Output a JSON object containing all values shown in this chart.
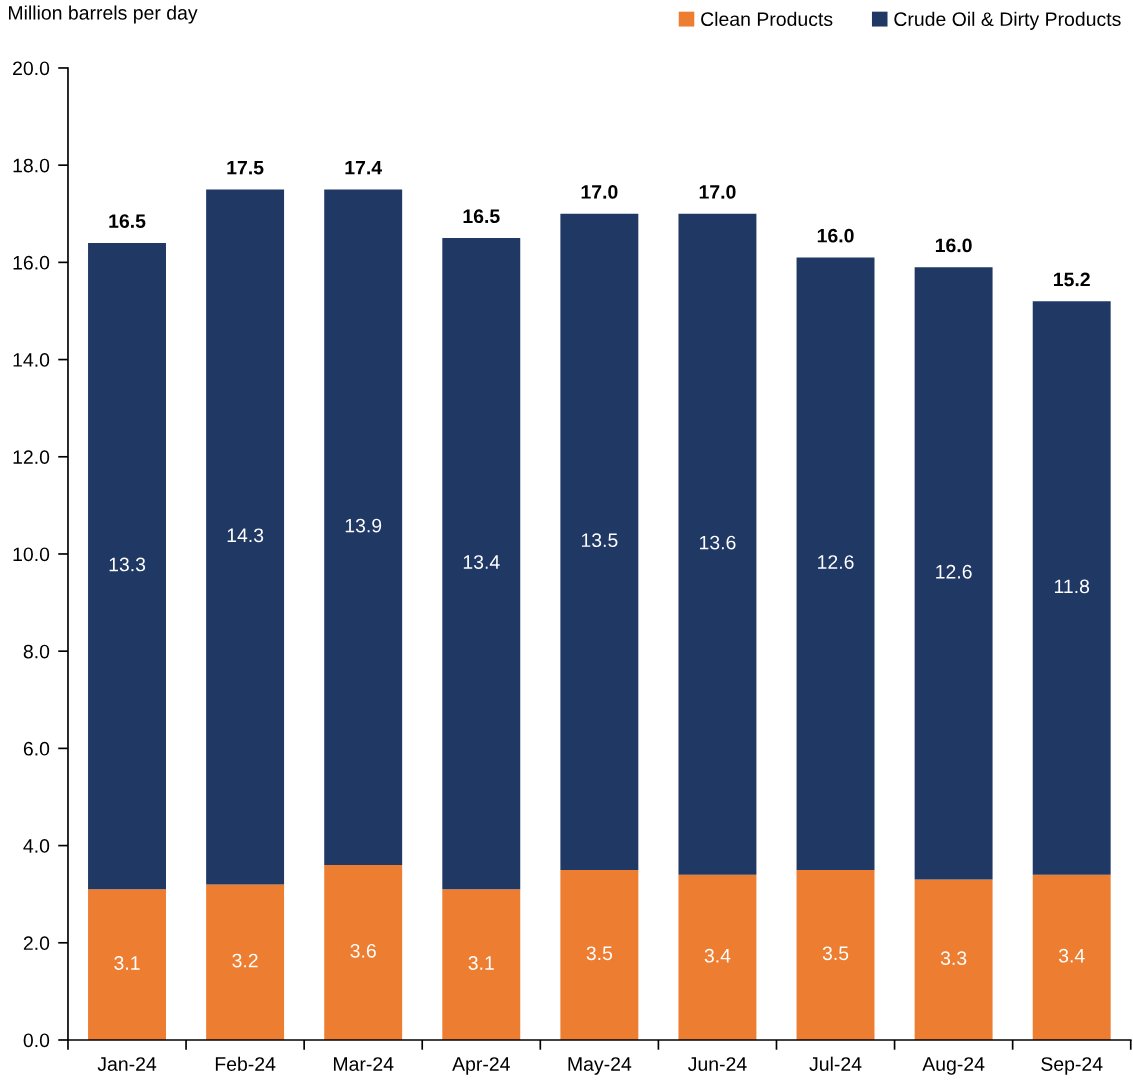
{
  "chart_data": {
    "type": "bar",
    "stacked": true,
    "ylabel": "Million barrels per day",
    "categories": [
      "Jan-24",
      "Feb-24",
      "Mar-24",
      "Apr-24",
      "May-24",
      "Jun-24",
      "Jul-24",
      "Aug-24",
      "Sep-24"
    ],
    "series": [
      {
        "name": "Clean Products",
        "color": "#ed7d31",
        "values": [
          3.1,
          3.2,
          3.6,
          3.1,
          3.5,
          3.4,
          3.5,
          3.3,
          3.4
        ]
      },
      {
        "name": "Crude Oil & Dirty Products",
        "color": "#203864",
        "values": [
          13.3,
          14.3,
          13.9,
          13.4,
          13.5,
          13.6,
          12.6,
          12.6,
          11.8
        ]
      }
    ],
    "totals": [
      "16.5",
      "17.5",
      "17.4",
      "16.5",
      "17.0",
      "17.0",
      "16.0",
      "16.0",
      "15.2"
    ],
    "data_labels": true,
    "ylim": [
      0,
      20
    ],
    "yticks": [
      {
        "value": 0,
        "label": "0.0"
      },
      {
        "value": 2,
        "label": "2.0"
      },
      {
        "value": 4,
        "label": "4.0"
      },
      {
        "value": 6,
        "label": "6.0"
      },
      {
        "value": 8,
        "label": "8.0"
      },
      {
        "value": 10,
        "label": "10.0"
      },
      {
        "value": 12,
        "label": "12.0"
      },
      {
        "value": 14,
        "label": "14.0"
      },
      {
        "value": 16,
        "label": "16.0"
      },
      {
        "value": 18,
        "label": "18.0"
      },
      {
        "value": 20,
        "label": "20.0"
      }
    ],
    "grid": false,
    "legend": "top right"
  }
}
